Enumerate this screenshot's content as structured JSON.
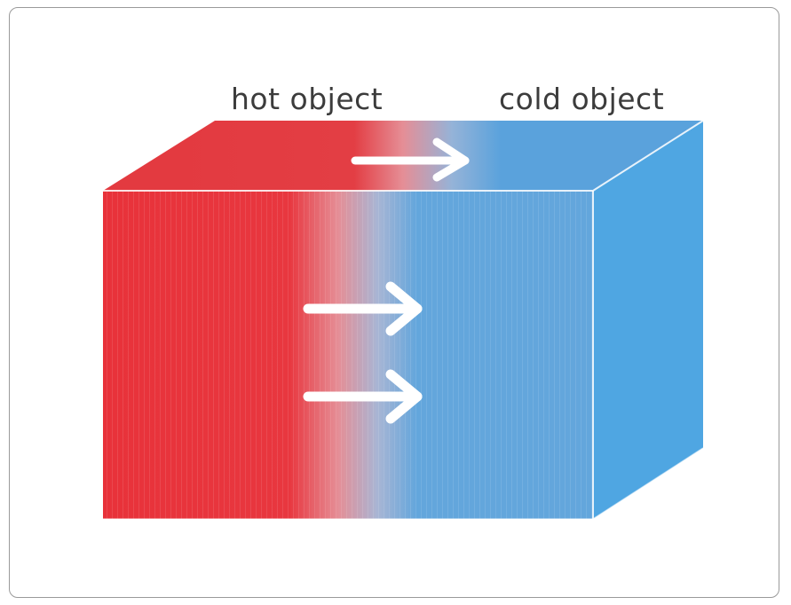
{
  "labels": {
    "hot": "hot object",
    "cold": "cold object"
  },
  "colors": {
    "hot": "#e8323a",
    "hot_top": "#e03a40",
    "cold": "#63a6dc",
    "cold_top": "#5aa2dc",
    "cold_side": "#4fa6e2",
    "arrow": "#ffffff",
    "frame": "#9a9a9a"
  },
  "icons": {
    "arrows": [
      "top-right-arrow-icon",
      "front-right-arrow-icon",
      "front-right-arrow-icon"
    ]
  }
}
